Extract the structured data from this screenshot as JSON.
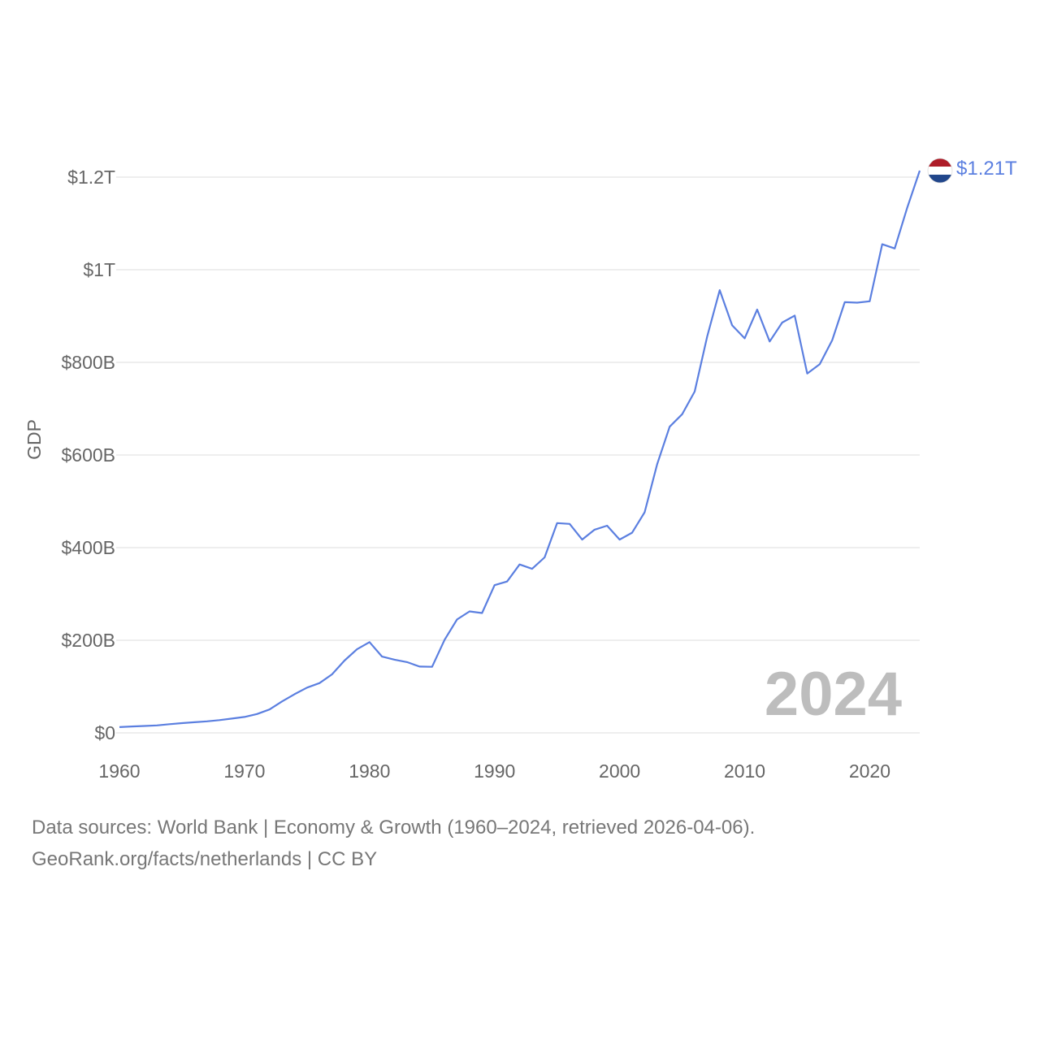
{
  "chart_data": {
    "type": "line",
    "ylabel": "GDP",
    "xlabel": "",
    "xlim": [
      1960,
      2024
    ],
    "ylim": [
      0,
      1.2
    ],
    "y_unit": "trillion USD",
    "x_ticks": [
      1960,
      1970,
      1980,
      1990,
      2000,
      2010,
      2020
    ],
    "y_ticks": [
      {
        "value": 0,
        "label": "$0"
      },
      {
        "value": 0.2,
        "label": "$200B"
      },
      {
        "value": 0.4,
        "label": "$400B"
      },
      {
        "value": 0.6,
        "label": "$600B"
      },
      {
        "value": 0.8,
        "label": "$800B"
      },
      {
        "value": 1.0,
        "label": "$1T"
      },
      {
        "value": 1.2,
        "label": "$1.2T"
      }
    ],
    "highlight_year": "2024",
    "series": [
      {
        "name": "Netherlands",
        "color": "#5b7fe0",
        "end_label": "$1.21T",
        "x": [
          1960,
          1961,
          1962,
          1963,
          1964,
          1965,
          1966,
          1967,
          1968,
          1969,
          1970,
          1971,
          1972,
          1973,
          1974,
          1975,
          1976,
          1977,
          1978,
          1979,
          1980,
          1981,
          1982,
          1983,
          1984,
          1985,
          1986,
          1987,
          1988,
          1989,
          1990,
          1991,
          1992,
          1993,
          1994,
          1995,
          1996,
          1997,
          1998,
          1999,
          2000,
          2001,
          2002,
          2003,
          2004,
          2005,
          2006,
          2007,
          2008,
          2009,
          2010,
          2011,
          2012,
          2013,
          2014,
          2015,
          2016,
          2017,
          2018,
          2019,
          2020,
          2021,
          2022,
          2023,
          2024
        ],
        "values": [
          0.0124,
          0.0138,
          0.015,
          0.0162,
          0.0187,
          0.0211,
          0.0229,
          0.025,
          0.0275,
          0.0309,
          0.0343,
          0.0407,
          0.0505,
          0.0679,
          0.0835,
          0.0978,
          0.1076,
          0.1264,
          0.1561,
          0.1806,
          0.196,
          0.1647,
          0.1581,
          0.1528,
          0.1432,
          0.1427,
          0.201,
          0.245,
          0.2623,
          0.2587,
          0.319,
          0.3269,
          0.3636,
          0.3542,
          0.379,
          0.453,
          0.4513,
          0.4173,
          0.4387,
          0.4473,
          0.4173,
          0.4322,
          0.4763,
          0.58,
          0.661,
          0.688,
          0.737,
          0.856,
          0.956,
          0.88,
          0.852,
          0.914,
          0.845,
          0.886,
          0.901,
          0.776,
          0.796,
          0.848,
          0.93,
          0.929,
          0.932,
          1.055,
          1.046,
          1.134,
          1.214
        ]
      }
    ],
    "flag_colors": [
      "#ae1c28",
      "#ffffff",
      "#21468b"
    ],
    "grid_color": "#e9e9e9"
  },
  "footer": {
    "line1": "Data sources: World Bank | Economy & Growth (1960–2024, retrieved 2026-04-06).",
    "line2": "GeoRank.org/facts/netherlands | CC BY"
  }
}
